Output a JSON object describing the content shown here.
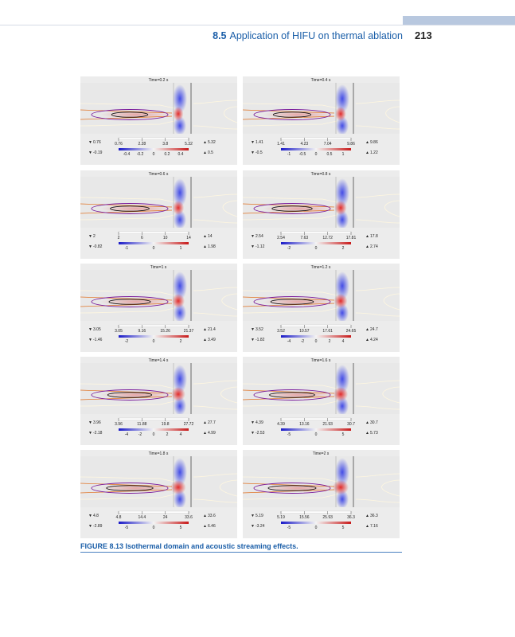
{
  "header": {
    "section_number": "8.5",
    "section_title": "Application of HIFU on thermal ablation",
    "page_number": "213"
  },
  "panels": [
    {
      "time": "Time=0.2 s",
      "temp_min": "0.76",
      "temp_max": "5.32",
      "vel_min": "-0.19",
      "vel_max": "0.5",
      "temp_ticks": [
        "0.76",
        "2.28",
        "3.8",
        "5.32"
      ],
      "vel_ticks": [
        "-0.4",
        "-0.2",
        "0",
        "0.2",
        "0.4"
      ]
    },
    {
      "time": "Time=0.4 s",
      "temp_min": "1.41",
      "temp_max": "9.86",
      "vel_min": "-0.5",
      "vel_max": "1.22",
      "temp_ticks": [
        "1.41",
        "4.23",
        "7.04",
        "9.86"
      ],
      "vel_ticks": [
        "-1",
        "-0.5",
        "0",
        "0.5",
        "1"
      ]
    },
    {
      "time": "Time=0.6 s",
      "temp_min": "2",
      "temp_max": "14",
      "vel_min": "-0.82",
      "vel_max": "1.98",
      "temp_ticks": [
        "2",
        "6",
        "10",
        "14"
      ],
      "vel_ticks": [
        "-1",
        "0",
        "1"
      ]
    },
    {
      "time": "Time=0.8 s",
      "temp_min": "2.54",
      "temp_max": "17.8",
      "vel_min": "-1.12",
      "vel_max": "2.74",
      "temp_ticks": [
        "2.54",
        "7.63",
        "12.72",
        "17.81"
      ],
      "vel_ticks": [
        "-2",
        "0",
        "2"
      ]
    },
    {
      "time": "Time=1 s",
      "temp_min": "3.05",
      "temp_max": "21.4",
      "vel_min": "-1.46",
      "vel_max": "3.49",
      "temp_ticks": [
        "3.05",
        "9.16",
        "15.26",
        "21.37"
      ],
      "vel_ticks": [
        "-2",
        "0",
        "2"
      ]
    },
    {
      "time": "Time=1.2 s",
      "temp_min": "3.52",
      "temp_max": "24.7",
      "vel_min": "-1.82",
      "vel_max": "4.24",
      "temp_ticks": [
        "3.52",
        "10.57",
        "17.61",
        "24.65"
      ],
      "vel_ticks": [
        "-4",
        "-2",
        "0",
        "2",
        "4"
      ]
    },
    {
      "time": "Time=1.4 s",
      "temp_min": "3.96",
      "temp_max": "27.7",
      "vel_min": "-2.18",
      "vel_max": "4.99",
      "temp_ticks": [
        "3.96",
        "11.88",
        "19.8",
        "27.72"
      ],
      "vel_ticks": [
        "-4",
        "-2",
        "0",
        "2",
        "4"
      ]
    },
    {
      "time": "Time=1.6 s",
      "temp_min": "4.39",
      "temp_max": "30.7",
      "vel_min": "-2.53",
      "vel_max": "5.73",
      "temp_ticks": [
        "4.39",
        "13.16",
        "21.93",
        "30.7"
      ],
      "vel_ticks": [
        "-5",
        "0",
        "5"
      ]
    },
    {
      "time": "Time=1.8 s",
      "temp_min": "4.8",
      "temp_max": "33.6",
      "vel_min": "-2.89",
      "vel_max": "6.46",
      "temp_ticks": [
        "4.8",
        "14.4",
        "24",
        "33.6"
      ],
      "vel_ticks": [
        "-5",
        "0",
        "5"
      ]
    },
    {
      "time": "Time=2 s",
      "temp_min": "5.19",
      "temp_max": "36.3",
      "vel_min": "-3.24",
      "vel_max": "7.16",
      "temp_ticks": [
        "5.19",
        "15.56",
        "25.93",
        "36.3"
      ],
      "vel_ticks": [
        "-5",
        "0",
        "5"
      ]
    }
  ],
  "caption": {
    "label": "FIGURE 8.13",
    "text": "Isothermal domain and acoustic streaming effects."
  }
}
